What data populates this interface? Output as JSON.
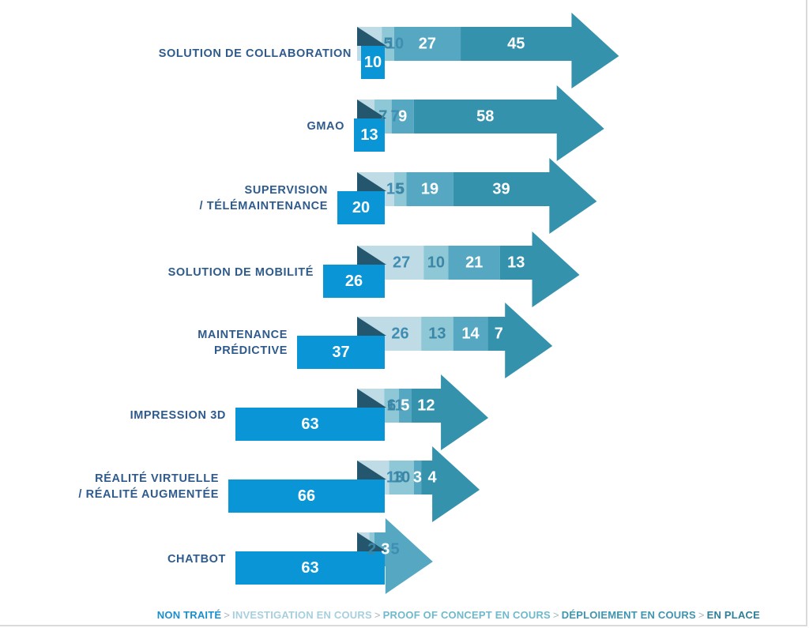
{
  "chart_data": {
    "type": "bar",
    "stacked": true,
    "orientation": "horizontal",
    "categories": [
      "SOLUTION DE COLLABORATION",
      "GMAO",
      "SUPERVISION\n/ TÉLÉMAINTENANCE",
      "SOLUTION DE MOBILITÉ",
      "MAINTENANCE\nPRÉDICTIVE",
      "IMPRESSION 3D",
      "RÉALITÉ VIRTUELLE\n/ RÉALITÉ AUGMENTÉE",
      "CHATBOT"
    ],
    "series": [
      {
        "name": "NON TRAITÉ",
        "color": "#0a96d6",
        "values": [
          10,
          13,
          20,
          26,
          37,
          63,
          66,
          63
        ]
      },
      {
        "name": "INVESTIGATION EN COURS",
        "color": "#bfdce6",
        "values": [
          10,
          7,
          15,
          27,
          26,
          11,
          13,
          5
        ]
      },
      {
        "name": "PROOF OF CONCEPT EN COURS",
        "color": "#8ec8d7",
        "values": [
          5,
          7,
          5,
          10,
          13,
          6,
          10,
          2
        ]
      },
      {
        "name": "DÉPLOIEMENT EN COURS",
        "color": "#56a8c2",
        "values": [
          27,
          9,
          19,
          21,
          14,
          5,
          3,
          3
        ]
      },
      {
        "name": "EN PLACE",
        "color": "#3592ad",
        "values": [
          45,
          58,
          39,
          13,
          7,
          12,
          4,
          null
        ]
      }
    ],
    "legend_position": "bottom-right",
    "legend_separator": ">",
    "grid": false
  }
}
